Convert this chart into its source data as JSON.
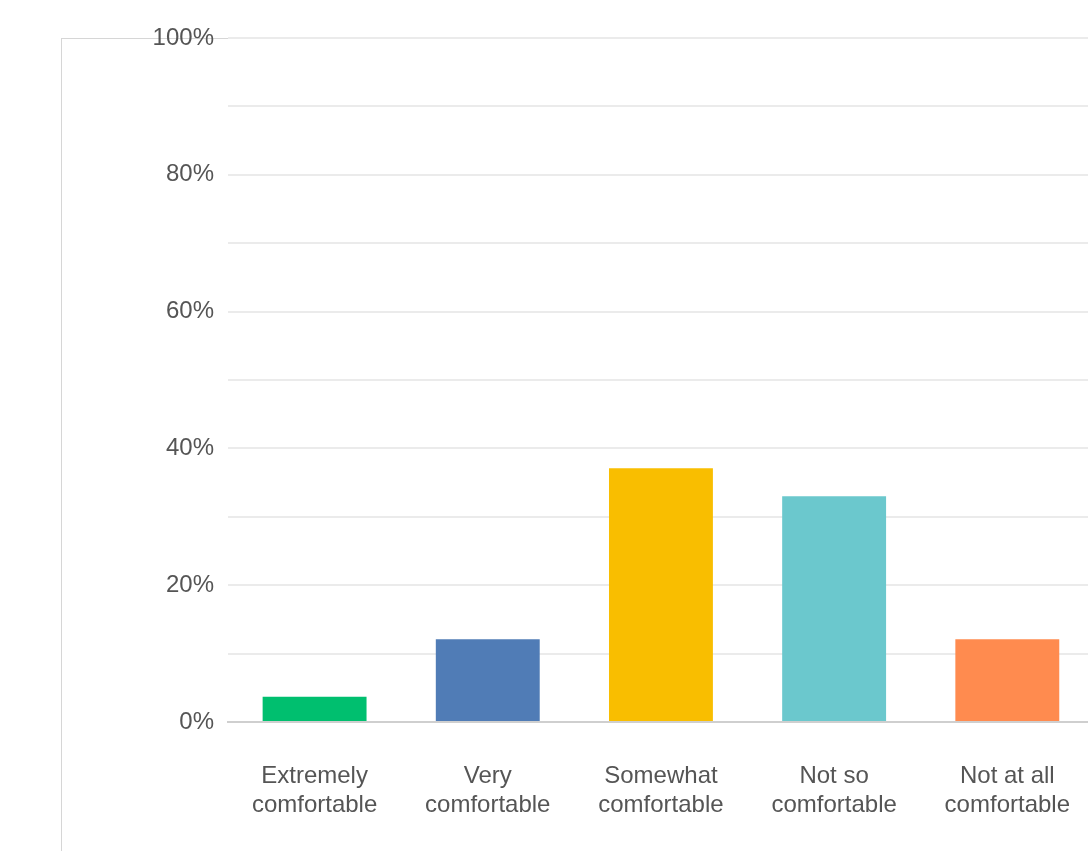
{
  "chart_data": {
    "type": "bar",
    "categories": [
      "Extremely comfortable",
      "Very comfortable",
      "Somewhat comfortable",
      "Not so comfortable",
      "Not at all comfortable"
    ],
    "values": [
      3.7,
      12.1,
      37.1,
      33.0,
      12.1
    ],
    "colors": [
      "#00bf6f",
      "#507cb6",
      "#f9be00",
      "#6bc8cd",
      "#ff8b4f"
    ],
    "ylim": [
      0,
      100
    ],
    "yticks": [
      {
        "value": 0,
        "label": "0%"
      },
      {
        "value": 10,
        "label": null
      },
      {
        "value": 20,
        "label": "20%"
      },
      {
        "value": 30,
        "label": null
      },
      {
        "value": 40,
        "label": "40%"
      },
      {
        "value": 50,
        "label": null
      },
      {
        "value": 60,
        "label": "60%"
      },
      {
        "value": 70,
        "label": null
      },
      {
        "value": 80,
        "label": "80%"
      },
      {
        "value": 90,
        "label": null
      },
      {
        "value": 100,
        "label": "100%"
      }
    ],
    "grid": "y"
  }
}
